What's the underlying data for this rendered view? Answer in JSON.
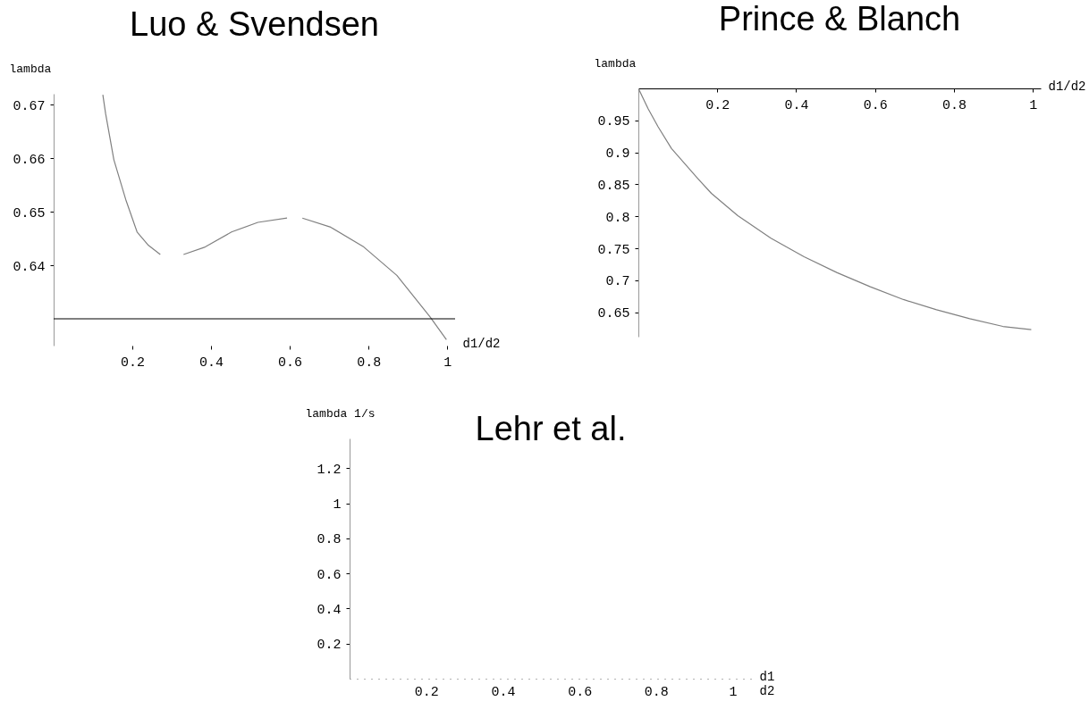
{
  "chart_data": [
    {
      "type": "line",
      "title": "Luo & Svendsen",
      "xlabel": "d1/d2",
      "ylabel": "lambda",
      "xlim": [
        0,
        1.02
      ],
      "ylim": [
        0.625,
        0.672
      ],
      "xticks": [
        0.2,
        0.4,
        0.6,
        0.8,
        1
      ],
      "yticks": [
        0.64,
        0.65,
        0.66,
        0.67
      ],
      "grid": false,
      "ref_lines": [
        {
          "axis": "y",
          "value": 0.63,
          "color": "#000000"
        }
      ],
      "series": [
        {
          "color": "#808080",
          "x": [
            0.125,
            0.132,
            0.153,
            0.183,
            0.212,
            0.241,
            0.271,
            0.3,
            0.33,
            0.385,
            0.452,
            0.519,
            0.593,
            0.612,
            0.632,
            0.704,
            0.788,
            0.872,
            0.956,
            0.998
          ],
          "values": [
            0.6718,
            0.6683,
            0.6597,
            0.6523,
            0.6462,
            0.6437,
            0.642,
            null,
            0.642,
            0.6434,
            0.6462,
            0.648,
            0.6488,
            null,
            0.6488,
            0.6471,
            0.6434,
            0.6381,
            0.6304,
            0.6261
          ]
        }
      ]
    },
    {
      "type": "line",
      "title": "Prince & Blanch",
      "xlabel": "d1/d2",
      "ylabel": "lambda",
      "xlim": [
        0,
        1.02
      ],
      "ylim": [
        0.612,
        1.0
      ],
      "xticks": [
        0.2,
        0.4,
        0.6,
        0.8,
        1
      ],
      "yticks": [
        0.65,
        0.7,
        0.75,
        0.8,
        0.85,
        0.9,
        0.95
      ],
      "grid": false,
      "series": [
        {
          "color": "#808080",
          "x": [
            0,
            0.025,
            0.05,
            0.084,
            0.151,
            0.185,
            0.252,
            0.336,
            0.42,
            0.504,
            0.588,
            0.672,
            0.756,
            0.84,
            0.924,
            0.996
          ],
          "values": [
            1.0,
            0.968,
            0.94,
            0.906,
            0.859,
            0.836,
            0.801,
            0.766,
            0.737,
            0.712,
            0.69,
            0.67,
            0.654,
            0.64,
            0.628,
            0.623
          ]
        }
      ]
    },
    {
      "type": "line",
      "title": "Lehr et al.",
      "xlabel": "d1\nd2",
      "ylabel": "lambda 1/s",
      "xlim": [
        0,
        1.05
      ],
      "ylim": [
        0,
        1.37
      ],
      "xticks": [
        0.2,
        0.4,
        0.6,
        0.8,
        1
      ],
      "yticks": [
        0.2,
        0.4,
        0.6,
        0.8,
        1,
        1.2
      ],
      "grid": false
    }
  ]
}
